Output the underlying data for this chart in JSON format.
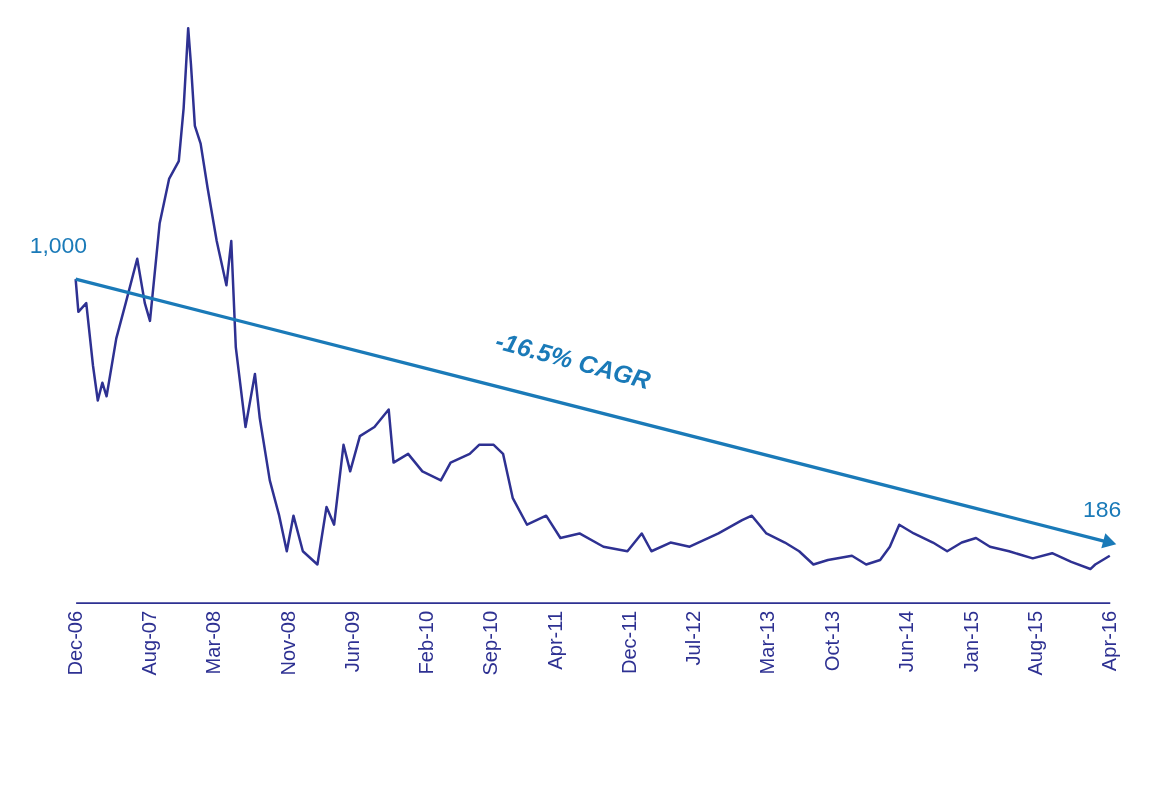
{
  "chart_data": {
    "type": "line",
    "xlim": [
      "2006-12-01",
      "2016-04-01"
    ],
    "tick_labels": "x",
    "grid": false,
    "xticks": [
      {
        "value": "2006-12-01",
        "label": "Dec-06"
      },
      {
        "value": "2007-08-01",
        "label": "Aug-07"
      },
      {
        "value": "2008-03-01",
        "label": "Mar-08"
      },
      {
        "value": "2008-11-01",
        "label": "Nov-08"
      },
      {
        "value": "2009-06-01",
        "label": "Jun-09"
      },
      {
        "value": "2010-02-01",
        "label": "Feb-10"
      },
      {
        "value": "2010-09-01",
        "label": "Sep-10"
      },
      {
        "value": "2011-04-01",
        "label": "Apr-11"
      },
      {
        "value": "2011-12-01",
        "label": "Dec-11"
      },
      {
        "value": "2012-07-01",
        "label": "Jul-12"
      },
      {
        "value": "2013-03-01",
        "label": "Mar-13"
      },
      {
        "value": "2013-10-01",
        "label": "Oct-13"
      },
      {
        "value": "2014-06-01",
        "label": "Jun-14"
      },
      {
        "value": "2015-01-01",
        "label": "Jan-15"
      },
      {
        "value": "2015-08-01",
        "label": "Aug-15"
      },
      {
        "value": "2016-04-01",
        "label": "Apr-16"
      }
    ],
    "annotations": [
      "-16.5% CAGR"
    ],
    "series": [
      {
        "color": "#2e3192",
        "x": [
          "2006-12-01",
          "2006-12-10",
          "2007-01-05",
          "2007-01-27",
          "2007-02-12",
          "2007-02-27",
          "2007-03-13",
          "2007-04-14",
          "2007-05-15",
          "2007-06-22",
          "2007-07-17",
          "2007-08-03",
          "2007-09-04",
          "2007-10-05",
          "2007-11-06",
          "2007-11-22",
          "2007-12-07",
          "2007-12-16",
          "2007-12-29",
          "2008-01-17",
          "2008-02-09",
          "2008-03-10",
          "2008-04-11",
          "2008-04-27",
          "2008-05-12",
          "2008-06-13",
          "2008-07-14",
          "2008-07-30",
          "2008-09-01",
          "2008-10-02",
          "2008-10-27",
          "2008-11-18",
          "2008-12-19",
          "2009-02-05",
          "2009-03-07",
          "2009-04-01",
          "2009-05-02",
          "2009-05-24",
          "2009-06-25",
          "2009-08-12",
          "2009-09-28",
          "2009-10-14",
          "2009-12-01",
          "2010-01-17",
          "2010-03-19",
          "2010-04-20",
          "2010-06-22",
          "2010-07-23",
          "2010-09-09",
          "2010-10-10",
          "2010-11-11",
          "2010-12-28",
          "2011-03-01",
          "2011-04-17",
          "2011-06-19",
          "2011-09-06",
          "2011-11-24",
          "2012-01-10",
          "2012-02-11",
          "2012-04-14",
          "2012-06-16",
          "2012-09-19",
          "2012-12-06",
          "2013-01-07",
          "2013-02-24",
          "2013-04-26",
          "2013-06-12",
          "2013-07-29",
          "2013-09-15",
          "2013-12-03",
          "2014-01-19",
          "2014-03-06",
          "2014-04-07",
          "2014-05-08",
          "2014-06-25",
          "2014-08-27",
          "2014-10-13",
          "2014-11-30",
          "2015-01-16",
          "2015-03-03",
          "2015-05-05",
          "2015-07-22",
          "2015-09-24",
          "2015-11-26",
          "2016-01-28",
          "2016-02-13",
          "2016-04-01"
        ],
        "values": [
          1000,
          899,
          926,
          734,
          625,
          680,
          638,
          817,
          926,
          1063,
          926,
          871,
          1173,
          1310,
          1365,
          1529,
          1776,
          1666,
          1474,
          1419,
          1282,
          1118,
          981,
          1118,
          789,
          543,
          707,
          570,
          378,
          269,
          159,
          269,
          159,
          118,
          296,
          241,
          488,
          406,
          515,
          543,
          597,
          433,
          460,
          406,
          378,
          433,
          460,
          488,
          488,
          460,
          323,
          241,
          269,
          200,
          214,
          173,
          159,
          214,
          159,
          186,
          173,
          214,
          255,
          269,
          214,
          186,
          159,
          118,
          132,
          145,
          118,
          132,
          173,
          241,
          214,
          186,
          159,
          186,
          200,
          173,
          159,
          137,
          153,
          126,
          104,
          118,
          145
        ]
      },
      {
        "color": "#1a7ab8",
        "x": [
          "2006-12-01",
          "2016-04-01"
        ],
        "values": [
          1000,
          186
        ],
        "value_labels": [
          "1,000",
          "186"
        ]
      }
    ]
  }
}
